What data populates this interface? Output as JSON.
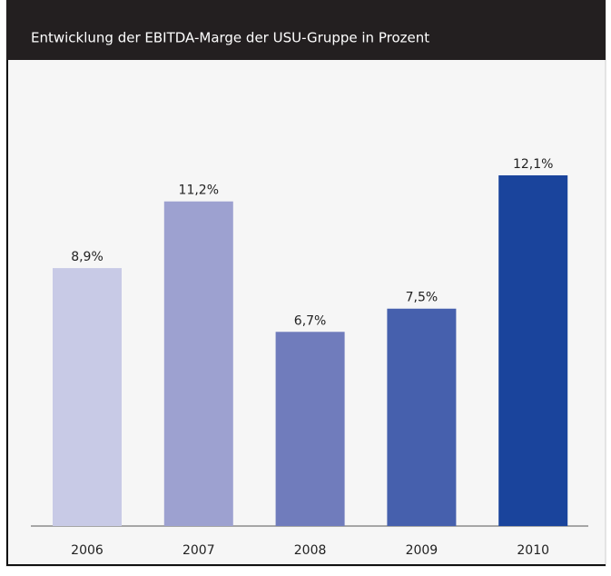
{
  "chart_data": {
    "type": "bar",
    "title": "Entwicklung der EBITDA-Marge der USU-Gruppe in Prozent",
    "categories": [
      "2006",
      "2007",
      "2008",
      "2009",
      "2010"
    ],
    "values": [
      8.9,
      11.2,
      6.7,
      7.5,
      12.1
    ],
    "value_labels": [
      "8,9%",
      "11,2%",
      "6,7%",
      "7,5%",
      "12,1%"
    ],
    "colors": [
      "#c8cae6",
      "#9da1d0",
      "#707cbc",
      "#4660ad",
      "#1a449c"
    ]
  }
}
